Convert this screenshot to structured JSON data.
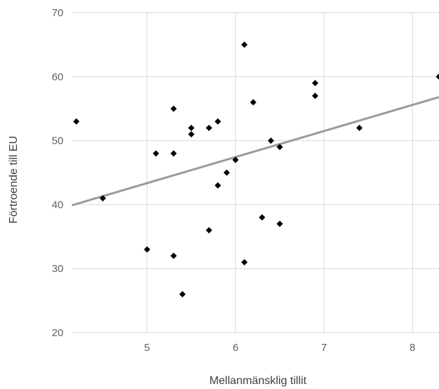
{
  "chart_data": {
    "type": "scatter",
    "xlabel": "Mellanmänsklig tillit",
    "ylabel": "Förtroende till EU",
    "xlim": [
      4.15,
      8.3
    ],
    "ylim": [
      20,
      70
    ],
    "x_ticks": [
      5,
      6,
      7,
      8
    ],
    "y_ticks": [
      20,
      30,
      40,
      50,
      60,
      70
    ],
    "grid": true,
    "legend": "none",
    "marker": "diamond",
    "colors": {
      "points": "#000000",
      "trendline": "#9a9a9a",
      "grid": "#d9d9d9"
    },
    "series": [
      {
        "points": [
          [
            4.2,
            53
          ],
          [
            4.5,
            41
          ],
          [
            5.0,
            33
          ],
          [
            5.1,
            48
          ],
          [
            5.3,
            55
          ],
          [
            5.3,
            48
          ],
          [
            5.3,
            32
          ],
          [
            5.4,
            26
          ],
          [
            5.5,
            52
          ],
          [
            5.5,
            51
          ],
          [
            5.7,
            52
          ],
          [
            5.7,
            36
          ],
          [
            5.8,
            53
          ],
          [
            5.8,
            43
          ],
          [
            5.9,
            45
          ],
          [
            6.0,
            47
          ],
          [
            6.1,
            65
          ],
          [
            6.1,
            31
          ],
          [
            6.2,
            56
          ],
          [
            6.3,
            38
          ],
          [
            6.4,
            50
          ],
          [
            6.5,
            49
          ],
          [
            6.5,
            37
          ],
          [
            6.9,
            59
          ],
          [
            6.9,
            57
          ],
          [
            7.4,
            52
          ],
          [
            8.3,
            60
          ]
        ]
      }
    ],
    "trendline": {
      "type": "linear",
      "from": [
        4.15,
        39.9
      ],
      "to": [
        8.3,
        56.8
      ]
    }
  }
}
